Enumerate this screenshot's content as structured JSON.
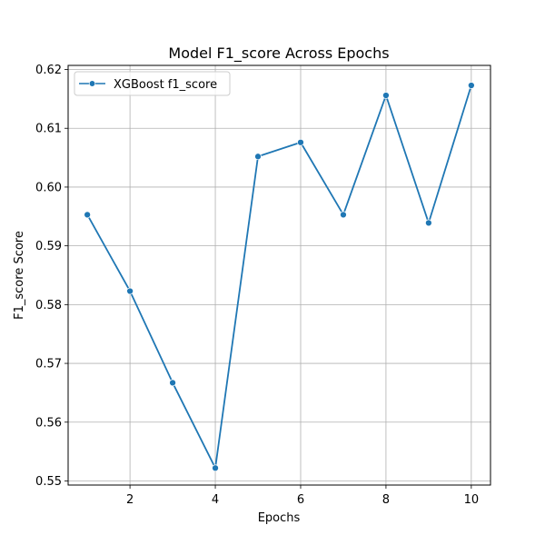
{
  "chart_data": {
    "type": "line",
    "title": "Model F1_score Across Epochs",
    "xlabel": "Epochs",
    "ylabel": "F1_score Score",
    "xlim": [
      0.55,
      10.45
    ],
    "ylim": [
      0.5493,
      0.6207
    ],
    "xticks": [
      2,
      4,
      6,
      8,
      10
    ],
    "xtick_labels": [
      "2",
      "4",
      "6",
      "8",
      "10"
    ],
    "yticks": [
      0.55,
      0.56,
      0.57,
      0.58,
      0.59,
      0.6,
      0.61,
      0.62
    ],
    "ytick_labels": [
      "0.55",
      "0.56",
      "0.57",
      "0.58",
      "0.59",
      "0.60",
      "0.61",
      "0.62"
    ],
    "grid": true,
    "legend_position": "top-left",
    "x": [
      1,
      2,
      3,
      4,
      5,
      6,
      7,
      8,
      9,
      10
    ],
    "series": [
      {
        "name": "XGBoost f1_score",
        "color": "#1f77b4",
        "marker": "circle",
        "values": [
          0.5953,
          0.5823,
          0.5667,
          0.5522,
          0.6052,
          0.6076,
          0.5953,
          0.6156,
          0.5939,
          0.6173
        ]
      }
    ]
  }
}
